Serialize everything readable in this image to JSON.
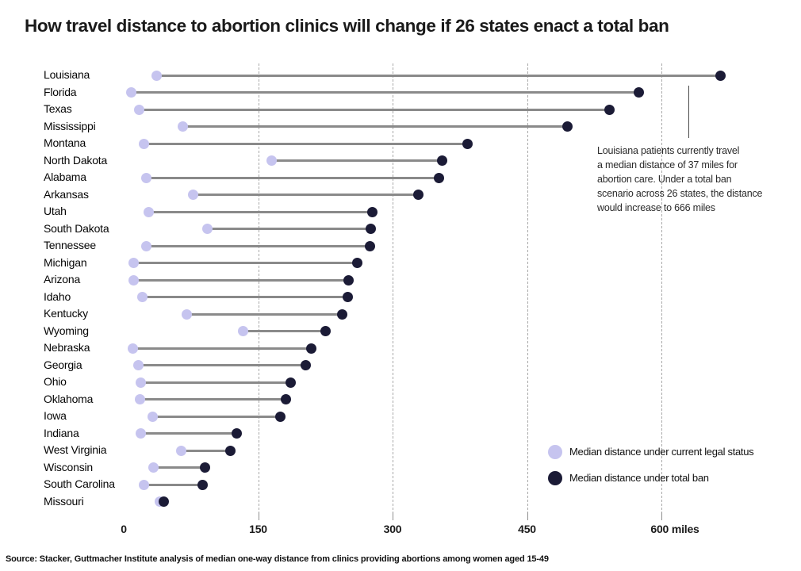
{
  "chart_data": {
    "type": "scatter",
    "variant": "dumbbell-lollipop",
    "title": "How travel distance to abortion clinics will change if 26 states enact a total ban",
    "categories": [
      "Louisiana",
      "Florida",
      "Texas",
      "Mississippi",
      "Montana",
      "North Dakota",
      "Alabama",
      "Arkansas",
      "Utah",
      "South Dakota",
      "Tennessee",
      "Michigan",
      "Arizona",
      "Idaho",
      "Kentucky",
      "Wyoming",
      "Nebraska",
      "Georgia",
      "Ohio",
      "Oklahoma",
      "Iowa",
      "Indiana",
      "West Virginia",
      "Wisconsin",
      "South Carolina",
      "Missouri"
    ],
    "series": [
      {
        "name": "Median distance under current legal status",
        "color": "#c6c4ef",
        "values": [
          37,
          8,
          17,
          66,
          23,
          165,
          25,
          77,
          28,
          93,
          25,
          11,
          11,
          21,
          70,
          133,
          10,
          16,
          19,
          18,
          32,
          19,
          64,
          33,
          23,
          40
        ]
      },
      {
        "name": "Median distance under total ban",
        "color": "#1b1b36",
        "values": [
          666,
          575,
          542,
          495,
          384,
          355,
          352,
          329,
          277,
          276,
          275,
          261,
          251,
          250,
          244,
          225,
          209,
          203,
          186,
          181,
          175,
          126,
          119,
          91,
          88,
          45
        ]
      }
    ],
    "xlabel": "miles",
    "x_ticks": [
      0,
      150,
      300,
      450,
      600
    ],
    "x_tick_labels": [
      "0",
      "150",
      "300",
      "450",
      "600 miles"
    ],
    "xlim": [
      0,
      680
    ],
    "grid": "vertical-dashed (no line at 0)",
    "legend_position": "bottom-right",
    "connector_color": "#8a8a8a"
  },
  "annotation": {
    "text": "Louisiana patients currently travel\na median distance of 37 miles for\nabortion care. Under a total ban\nscenario across 26 states, the distance\nwould increase to 666 miles"
  },
  "legend": {
    "items": [
      {
        "label": "Median distance under current legal status",
        "color": "#c6c4ef"
      },
      {
        "label": "Median distance under total ban",
        "color": "#1b1b36"
      }
    ]
  },
  "source": "Source: Stacker, Guttmacher Institute analysis of median one-way distance from clinics providing abortions among women aged 15-49"
}
